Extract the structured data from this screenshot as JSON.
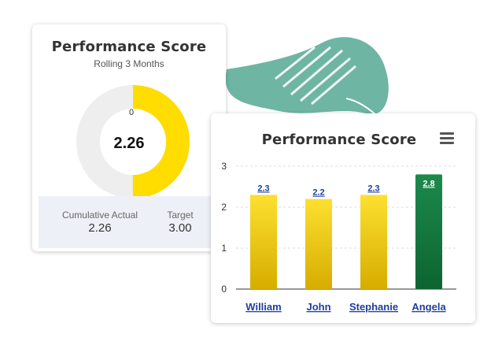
{
  "left_card": {
    "title": "Performance Score",
    "subtitle": "Rolling 3 Months",
    "donut": {
      "value_label": "2.26",
      "zero_label": "0",
      "fill_fraction": 0.5,
      "fill_color": "#FFDD00",
      "track_color": "#EEEEEE"
    },
    "stats": {
      "actual_label": "Cumulative Actual",
      "actual_value": "2.26",
      "target_label": "Target",
      "target_value": "3.00"
    }
  },
  "right_card": {
    "title": "Performance Score",
    "menu_icon": "hamburger-menu-icon"
  },
  "colors": {
    "yellow_top": "#FDE030",
    "yellow_bottom": "#D6AD00",
    "green_top": "#1C8A4C",
    "green_bottom": "#0D6430",
    "accent_blob": "#6FB5A4",
    "link": "#1F3FA0"
  },
  "chart_data": {
    "type": "bar",
    "title": "Performance Score",
    "categories": [
      "William",
      "John",
      "Stephanie",
      "Angela"
    ],
    "values": [
      2.3,
      2.2,
      2.3,
      2.8
    ],
    "data_labels": [
      "2.3",
      "2.2",
      "2.3",
      "2.8"
    ],
    "ylim": [
      0,
      3
    ],
    "yticks": [
      "0",
      "1",
      "2",
      "3"
    ],
    "grid": true,
    "bar_colors": [
      "yellow",
      "yellow",
      "yellow",
      "green"
    ]
  }
}
